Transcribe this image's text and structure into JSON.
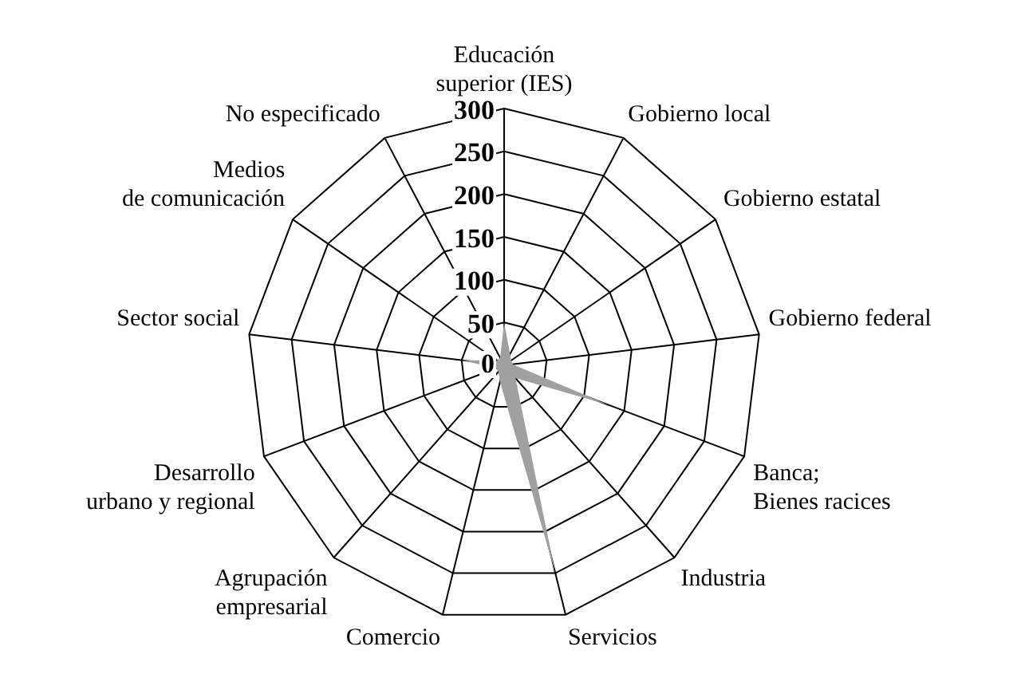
{
  "chart_data": {
    "type": "radar",
    "categories": [
      "Educación\nsuperior (IES)",
      "Gobierno local",
      "Gobierno estatal",
      "Gobierno federal",
      "Banca;\nBienes racices",
      "Industria",
      "Servicios",
      "Comercio",
      "Agrupación\nempresarial",
      "Desarrollo\nurbano y regional",
      "Sector social",
      "Medios\nde comunicación",
      "No especificado"
    ],
    "series": [
      {
        "color": "#a0a0a1",
        "values": [
          50,
          15,
          10,
          10,
          130,
          20,
          250,
          20,
          10,
          10,
          50,
          10,
          10
        ]
      }
    ],
    "ylim": [
      0,
      300
    ],
    "yticks": [
      0,
      50,
      100,
      150,
      200,
      250,
      300
    ],
    "grid": true,
    "legend": false
  }
}
